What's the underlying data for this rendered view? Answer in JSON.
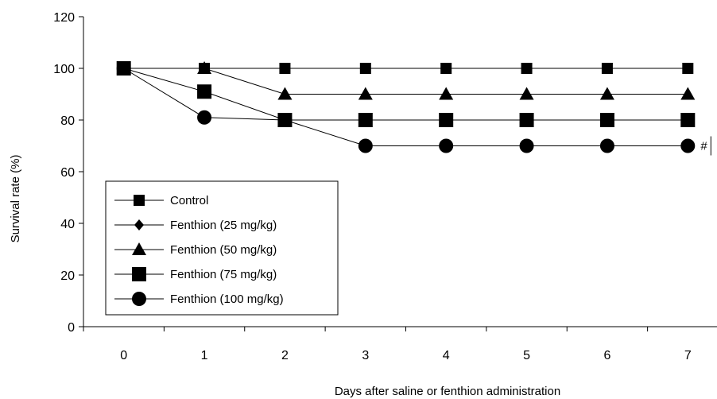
{
  "chart_data": {
    "type": "line",
    "title": "",
    "xlabel": "Days after saline or fenthion administration",
    "ylabel": "Survival rate (%)",
    "x": [
      0,
      1,
      2,
      3,
      4,
      5,
      6,
      7
    ],
    "xticks": [
      "0",
      "1",
      "2",
      "3",
      "4",
      "5",
      "6",
      "7"
    ],
    "ylim": [
      0,
      120
    ],
    "yticks": [
      "0",
      "20",
      "40",
      "60",
      "80",
      "100",
      "120"
    ],
    "grid": false,
    "legend_position": "bottom-left",
    "series": [
      {
        "name": "Control",
        "marker": "square-small",
        "values": [
          100,
          100,
          100,
          100,
          100,
          100,
          100,
          100
        ]
      },
      {
        "name": "Fenthion (25 mg/kg)",
        "marker": "diamond",
        "values": [
          100,
          100,
          100,
          100,
          100,
          100,
          100,
          100
        ]
      },
      {
        "name": "Fenthion (50 mg/kg)",
        "marker": "triangle",
        "values": [
          100,
          100,
          90,
          90,
          90,
          90,
          90,
          90
        ]
      },
      {
        "name": "Fenthion (75 mg/kg)",
        "marker": "square",
        "values": [
          100,
          91,
          80,
          80,
          80,
          80,
          80,
          80
        ]
      },
      {
        "name": "Fenthion (100 mg/kg)",
        "marker": "circle",
        "values": [
          100,
          81,
          80,
          70,
          70,
          70,
          70,
          70
        ]
      }
    ],
    "annotations": [
      {
        "text": "#",
        "x": 7,
        "y": 70
      }
    ]
  }
}
